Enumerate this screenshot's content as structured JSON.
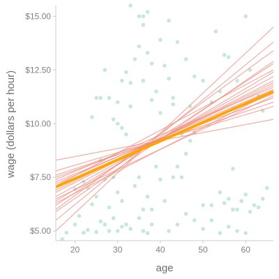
{
  "chart_data": {
    "type": "scatter",
    "title": "",
    "xlabel": "age",
    "ylabel": "wage (dollars per hour)",
    "xlim": [
      15.5,
      66.5
    ],
    "ylim": [
      4.55,
      15.5
    ],
    "x_ticks": [
      20,
      30,
      40,
      50,
      60
    ],
    "x_tick_labels": [
      "20",
      "30",
      "40",
      "50",
      "60"
    ],
    "y_ticks": [
      5,
      7.5,
      10,
      12.5,
      15
    ],
    "y_tick_labels": [
      "$5.00",
      "$7.50",
      "$10.00",
      "$12.50",
      "$15.00"
    ],
    "grid": false,
    "colors": {
      "points": "#a8dcc8",
      "resample_lines": "#f08a7e",
      "fit_line": "#ffa500",
      "axis": "#cccccc",
      "text": "#7f7f7f"
    },
    "points": [
      [
        17,
        4.62
      ],
      [
        18,
        4.92
      ],
      [
        20,
        5.3
      ],
      [
        21,
        5.7
      ],
      [
        22,
        4.92
      ],
      [
        23,
        5.05
      ],
      [
        24,
        6.25
      ],
      [
        25,
        4.95
      ],
      [
        26,
        5.45
      ],
      [
        27,
        5.3
      ],
      [
        28,
        5.0
      ],
      [
        29,
        5.6
      ],
      [
        30,
        5.0
      ],
      [
        31,
        5.2
      ],
      [
        32,
        5.3
      ],
      [
        33,
        5.1
      ],
      [
        35,
        5.6
      ],
      [
        36,
        5.0
      ],
      [
        37,
        4.9
      ],
      [
        38,
        5.3
      ],
      [
        20,
        6.95
      ],
      [
        22,
        7.3
      ],
      [
        23,
        7.0
      ],
      [
        25,
        6.6
      ],
      [
        26,
        8.3
      ],
      [
        27,
        7.4
      ],
      [
        28,
        6.1
      ],
      [
        29,
        7.5
      ],
      [
        30,
        6.8
      ],
      [
        31,
        6.4
      ],
      [
        33,
        8.5
      ],
      [
        34,
        7.1
      ],
      [
        35,
        7.5
      ],
      [
        36,
        6.0
      ],
      [
        37,
        6.6
      ],
      [
        38,
        6.0
      ],
      [
        39,
        8.0
      ],
      [
        40,
        7.4
      ],
      [
        41,
        6.4
      ],
      [
        43,
        7.5
      ],
      [
        44,
        8.0
      ],
      [
        45,
        7.5
      ],
      [
        46,
        8.6
      ],
      [
        47,
        9.2
      ],
      [
        48,
        9.6
      ],
      [
        50,
        6.2
      ],
      [
        52,
        6.2
      ],
      [
        54,
        6.8
      ],
      [
        55,
        6.3
      ],
      [
        56,
        6.5
      ],
      [
        57,
        6.0
      ],
      [
        58,
        6.0
      ],
      [
        59,
        6.4
      ],
      [
        60,
        6.7
      ],
      [
        61,
        5.9
      ],
      [
        62,
        6.2
      ],
      [
        63,
        6.1
      ],
      [
        64,
        6.5
      ],
      [
        65,
        7.0
      ],
      [
        57,
        7.9
      ],
      [
        42,
        5.0
      ],
      [
        44,
        5.3
      ],
      [
        46,
        5.8
      ],
      [
        48,
        5.5
      ],
      [
        50,
        5.1
      ],
      [
        52,
        5.5
      ],
      [
        54,
        4.9
      ],
      [
        56,
        5.2
      ],
      [
        58,
        5.0
      ],
      [
        60,
        4.9
      ],
      [
        24,
        10.3
      ],
      [
        25,
        11.2
      ],
      [
        26,
        11.2
      ],
      [
        27,
        12.5
      ],
      [
        28,
        11.2
      ],
      [
        29,
        10.2
      ],
      [
        30,
        11.0
      ],
      [
        31,
        12.0
      ],
      [
        32,
        12.4
      ],
      [
        33,
        11.9
      ],
      [
        34,
        13.0
      ],
      [
        35,
        13.6
      ],
      [
        36,
        14.6
      ],
      [
        37,
        13.3
      ],
      [
        38,
        12.8
      ],
      [
        39,
        11.5
      ],
      [
        40,
        13.9
      ],
      [
        41,
        12.7
      ],
      [
        42,
        12.1
      ],
      [
        43,
        10.9
      ],
      [
        30,
        10.0
      ],
      [
        31,
        9.8
      ],
      [
        32,
        9.5
      ],
      [
        33,
        10.8
      ],
      [
        36,
        12.0
      ],
      [
        38,
        11.1
      ],
      [
        40,
        10.5
      ],
      [
        43,
        11.2
      ],
      [
        45,
        9.5
      ],
      [
        47,
        10.8
      ],
      [
        53,
        14.3
      ],
      [
        55,
        13.2
      ],
      [
        56,
        13.1
      ],
      [
        57,
        10.7
      ],
      [
        58,
        12.0
      ],
      [
        60,
        15.0
      ],
      [
        61,
        12.5
      ],
      [
        63,
        11.3
      ],
      [
        64,
        10.6
      ],
      [
        35,
        15.0
      ],
      [
        36,
        15.0
      ],
      [
        37,
        15.2
      ],
      [
        33,
        15.5
      ],
      [
        42,
        14.8
      ],
      [
        44,
        13.8
      ],
      [
        46,
        13.0
      ],
      [
        48,
        12.2
      ],
      [
        50,
        12.0
      ],
      [
        52,
        11.0
      ],
      [
        54,
        11.5
      ]
    ],
    "fit_line": {
      "x": [
        15.5,
        66.5
      ],
      "y": [
        7.05,
        11.5
      ]
    },
    "resample_lines": [
      {
        "x": [
          15.5,
          66.5
        ],
        "y": [
          5.9,
          12.9
        ]
      },
      {
        "x": [
          15.5,
          66.5
        ],
        "y": [
          6.2,
          12.8
        ]
      },
      {
        "x": [
          15.5,
          66.5
        ],
        "y": [
          6.4,
          12.4
        ]
      },
      {
        "x": [
          15.5,
          66.5
        ],
        "y": [
          6.6,
          12.2
        ]
      },
      {
        "x": [
          15.5,
          66.5
        ],
        "y": [
          6.8,
          12.0
        ]
      },
      {
        "x": [
          15.5,
          66.5
        ],
        "y": [
          7.0,
          11.8
        ]
      },
      {
        "x": [
          15.5,
          66.5
        ],
        "y": [
          7.2,
          11.6
        ]
      },
      {
        "x": [
          15.5,
          66.5
        ],
        "y": [
          7.3,
          11.4
        ]
      },
      {
        "x": [
          15.5,
          66.5
        ],
        "y": [
          7.5,
          11.2
        ]
      },
      {
        "x": [
          15.5,
          66.5
        ],
        "y": [
          7.6,
          11.0
        ]
      },
      {
        "x": [
          15.5,
          66.5
        ],
        "y": [
          7.8,
          10.8
        ]
      },
      {
        "x": [
          15.5,
          66.5
        ],
        "y": [
          8.3,
          10.2
        ]
      },
      {
        "x": [
          15.5,
          66.5
        ],
        "y": [
          5.0,
          14.5
        ]
      },
      {
        "x": [
          15.5,
          66.5
        ],
        "y": [
          5.5,
          13.8
        ]
      },
      {
        "x": [
          15.5,
          66.5
        ],
        "y": [
          6.0,
          13.4
        ]
      },
      {
        "x": [
          15.5,
          66.5
        ],
        "y": [
          6.9,
          11.9
        ]
      },
      {
        "x": [
          15.5,
          66.5
        ],
        "y": [
          7.1,
          12.5
        ]
      },
      {
        "x": [
          15.5,
          66.5
        ],
        "y": [
          7.4,
          11.7
        ]
      },
      {
        "x": [
          15.5,
          66.5
        ],
        "y": [
          6.3,
          11.5
        ]
      },
      {
        "x": [
          15.5,
          66.5
        ],
        "y": [
          6.5,
          11.3
        ]
      }
    ]
  }
}
